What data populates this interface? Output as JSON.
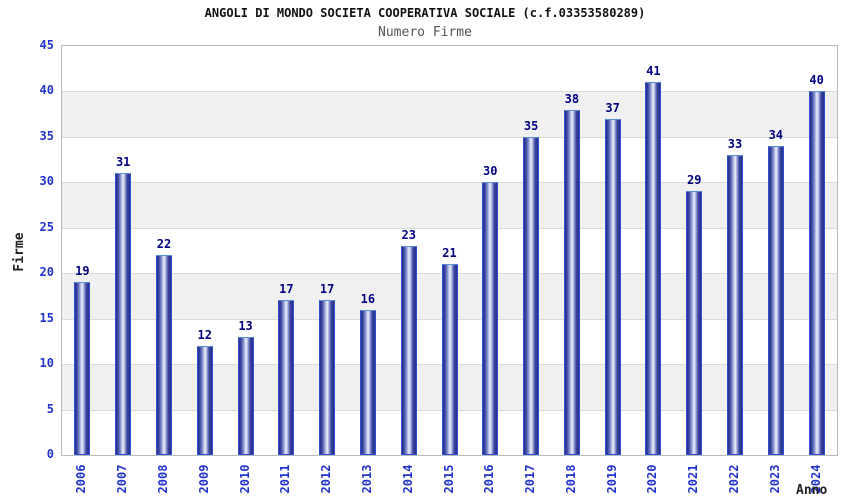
{
  "chart_data": {
    "type": "bar",
    "title": "ANGOLI DI MONDO SOCIETA COOPERATIVA SOCIALE (c.f.03353580289)",
    "subtitle": "Numero Firme",
    "xlabel": "Anno",
    "ylabel": "Firme",
    "categories": [
      "2006",
      "2007",
      "2008",
      "2009",
      "2010",
      "2011",
      "2012",
      "2013",
      "2014",
      "2015",
      "2016",
      "2017",
      "2018",
      "2019",
      "2020",
      "2021",
      "2022",
      "2023",
      "2024"
    ],
    "values": [
      19,
      31,
      22,
      12,
      13,
      17,
      17,
      16,
      23,
      21,
      30,
      35,
      38,
      37,
      41,
      29,
      33,
      34,
      40
    ],
    "ylim": [
      0,
      45
    ],
    "yticks": [
      0,
      5,
      10,
      15,
      20,
      25,
      30,
      35,
      40,
      45
    ],
    "grid": "horizontal-bands-alternating",
    "legend": "none",
    "colors": {
      "bar_dark": "#2a3390",
      "bar_highlight": "#e9ecf9",
      "bar_outline": "#2e4fd0",
      "value_label": "#000080",
      "axis_text": "#2233cc",
      "title_text": "#111111",
      "subtitle_text": "#555555",
      "axis_title_text": "#222222",
      "band_gray": "#f0f0f0",
      "frame": "#b9b9b9"
    }
  }
}
